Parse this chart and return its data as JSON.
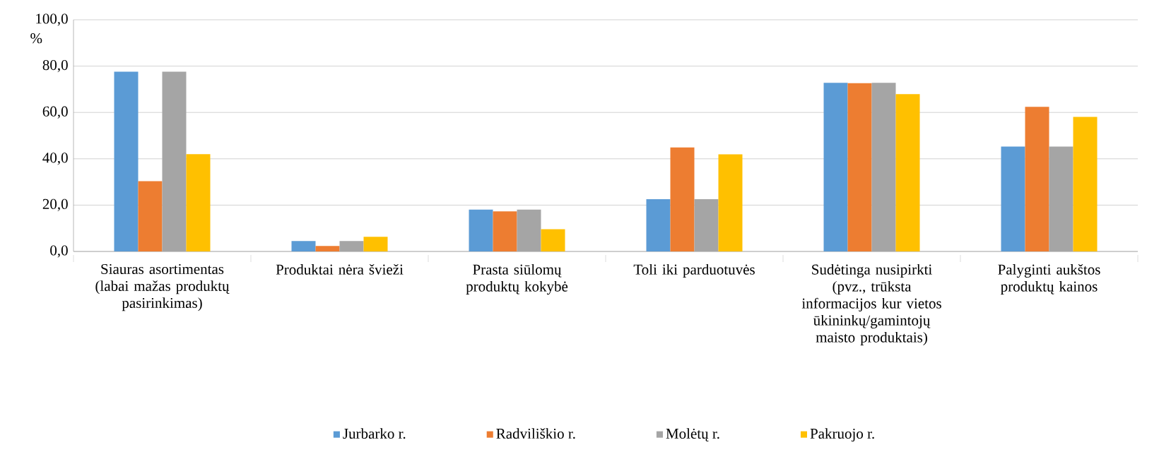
{
  "chart_data": {
    "type": "bar",
    "ylabel": "%",
    "categories": [
      "Siauras asortimentas (labai mažas produktų pasirinkimas)",
      "Produktai nėra švieži",
      "Prasta siūlomų produktų kokybė",
      "Toli iki parduotuvės",
      "Sudėtinga nusipirkti (pvz., trūksta informacijos kur vietos ūkininkų/gamintojų maisto produktais)",
      "Palyginti aukštos produktų kainos"
    ],
    "series": [
      {
        "name": "Jurbarko r.",
        "color": "#5b9bd5",
        "values": [
          77.6,
          4.5,
          18.1,
          22.6,
          72.8,
          45.3
        ]
      },
      {
        "name": "Radviliškio r.",
        "color": "#ed7d31",
        "values": [
          30.3,
          2.4,
          17.3,
          44.9,
          72.6,
          62.4
        ]
      },
      {
        "name": "Molėtų r.",
        "color": "#a5a5a5",
        "values": [
          77.6,
          4.5,
          18.1,
          22.6,
          72.8,
          45.3
        ]
      },
      {
        "name": "Pakruojo r.",
        "color": "#ffc000",
        "values": [
          42.0,
          6.3,
          9.6,
          41.9,
          67.9,
          58.1
        ]
      }
    ],
    "ylim": [
      0,
      100
    ],
    "yticks": [
      {
        "value": 0,
        "label": "0,0"
      },
      {
        "value": 20,
        "label": "20,0"
      },
      {
        "value": 40,
        "label": "40,0"
      },
      {
        "value": 60,
        "label": "60,0"
      },
      {
        "value": 80,
        "label": "80,0"
      },
      {
        "value": 100,
        "label": "100,0"
      }
    ],
    "grid": "y",
    "legend": "bottom"
  }
}
